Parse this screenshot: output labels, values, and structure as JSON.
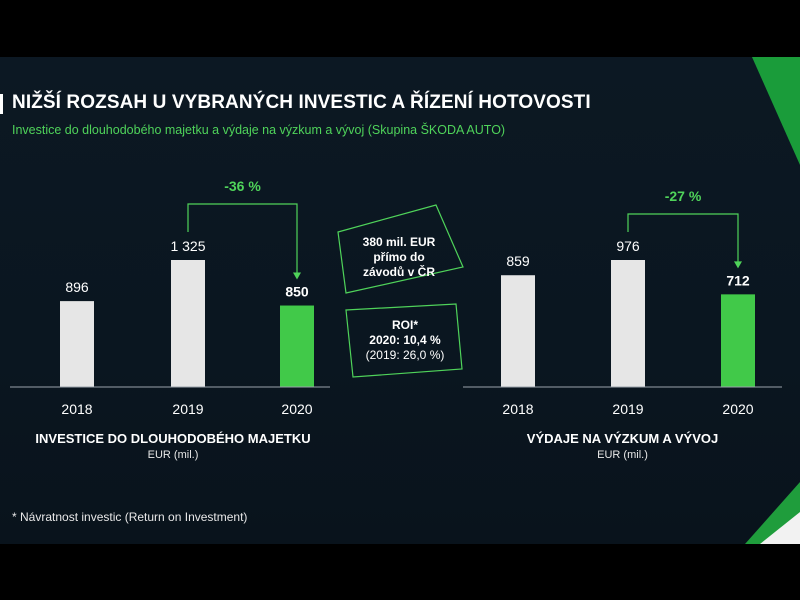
{
  "title": "NIŽŠÍ ROZSAH U VYBRANÝCH INVESTIC A ŘÍZENÍ HOTOVOSTI",
  "subtitle": "Investice do dlouhodobého majetku a výdaje na výzkum a vývoj (Skupina ŠKODA AUTO)",
  "footnote": "* Návratnost investic (Return on Investment)",
  "callouts": {
    "direct_line1": "380 mil. EUR",
    "direct_line2": "přímo do",
    "direct_line3": "závodů v ČR",
    "roi_line1": "ROI*",
    "roi_line2": "2020: 10,4 %",
    "roi_line3": "(2019: 26,0 %)"
  },
  "colors": {
    "bar_default": "#e6e6e6",
    "bar_highlight": "#41c949",
    "accent_green": "#4fd35a",
    "background": "#0b1722"
  },
  "chart_data": [
    {
      "type": "bar",
      "title": "INVESTICE DO DLOUHODOBÉHO MAJETKU",
      "subtitle": "EUR (mil.)",
      "categories": [
        "2018",
        "2019",
        "2020"
      ],
      "values": [
        896,
        1325,
        850
      ],
      "value_labels": [
        "896",
        "1 325",
        "850"
      ],
      "highlight_index": 2,
      "change_label": "-36 %",
      "change_from_index": 1,
      "change_to_index": 2,
      "ylim": [
        0,
        1500
      ],
      "grid": false
    },
    {
      "type": "bar",
      "title": "VÝDAJE NA VÝZKUM A VÝVOJ",
      "subtitle": "EUR (mil.)",
      "categories": [
        "2018",
        "2019",
        "2020"
      ],
      "values": [
        859,
        976,
        712
      ],
      "value_labels": [
        "859",
        "976",
        "712"
      ],
      "highlight_index": 2,
      "change_label": "-27 %",
      "change_from_index": 1,
      "change_to_index": 2,
      "ylim": [
        0,
        1100
      ],
      "grid": false
    }
  ]
}
